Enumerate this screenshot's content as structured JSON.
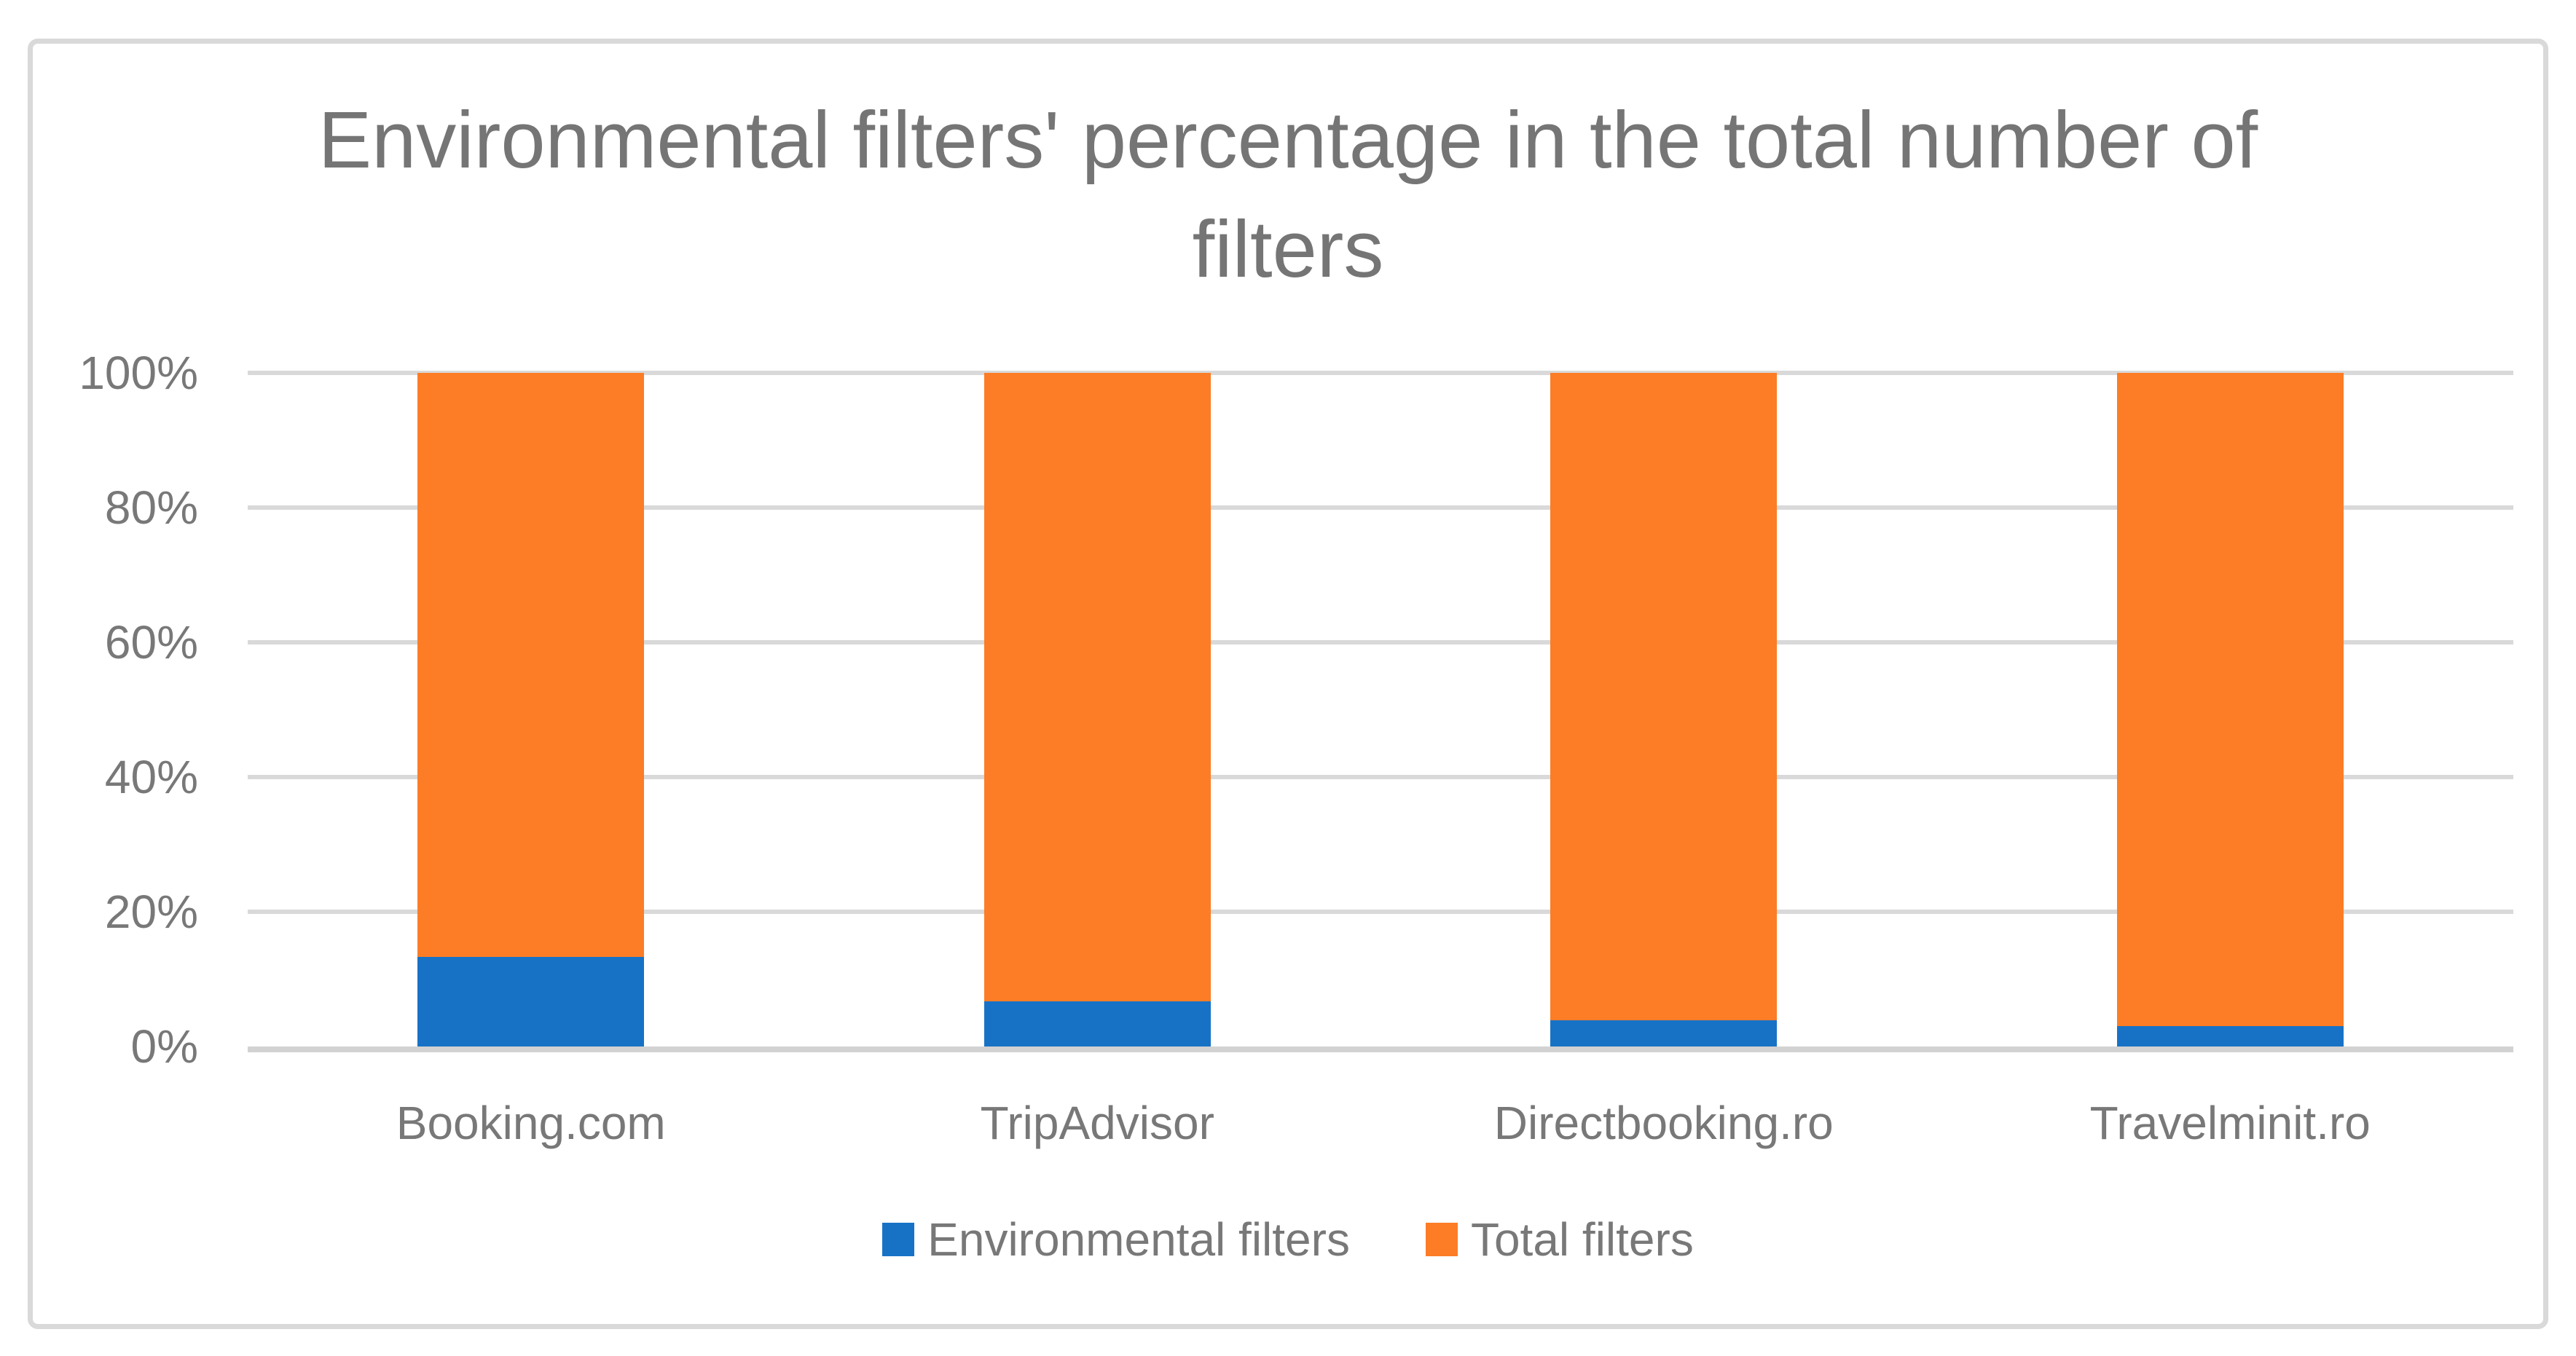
{
  "chart": {
    "title": "Environmental filters' percentage in the total number of filters",
    "legend": [
      {
        "label": "Environmental filters",
        "color": "#1772C6"
      },
      {
        "label": "Total filters",
        "color": "#FC7D26"
      }
    ]
  },
  "chart_data": {
    "type": "bar",
    "subtype": "100-percent-stacked-column",
    "title": "Environmental filters' percentage in the total number of filters",
    "categories": [
      "Booking.com",
      "TripAdvisor",
      "Directbooking.ro",
      "Travelminit.ro"
    ],
    "series": [
      {
        "name": "Environmental filters",
        "color": "#1772C6",
        "values": [
          13.3,
          6.7,
          3.9,
          3.0
        ]
      },
      {
        "name": "Total filters",
        "color": "#FC7D26",
        "values": [
          86.7,
          93.3,
          96.1,
          97.0
        ]
      }
    ],
    "xlabel": "",
    "ylabel": "",
    "ylim": [
      0,
      100
    ],
    "y_ticks": [
      "0%",
      "20%",
      "40%",
      "60%",
      "80%",
      "100%"
    ],
    "grid": true,
    "legend_position": "bottom",
    "gridline_color": "#D9D9D9",
    "axis_line_color": "#D2D2D2",
    "frame_border_color": "#D9D9D9",
    "title_color": "#757575",
    "label_color": "#787878"
  }
}
